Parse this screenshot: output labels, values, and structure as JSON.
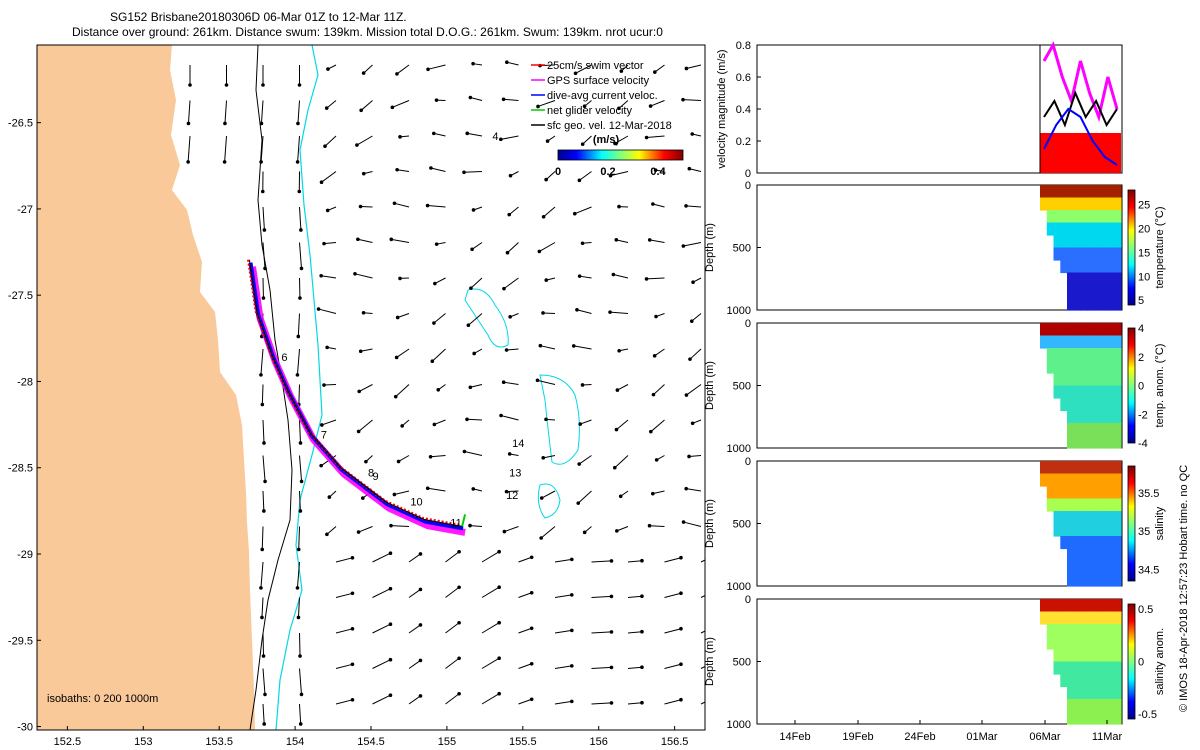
{
  "title_line1": "SG152 Brisbane20180306D 06-Mar 01Z to 12-Mar 11Z.",
  "title_line2": "Distance over ground: 261km. Distance swum: 139km. Mission total D.O.G.: 261km. Swum: 139km. nrot ucur:0",
  "credit": "© IMOS 18-Apr-2018 12:57:23 Hobart time. no QC",
  "colors": {
    "land": "#f9c99a",
    "isobath_200": "#000000",
    "isobath_1000": "#00d8e8",
    "swim_vector": "#ff0000",
    "gps_velocity": "#ff00ff",
    "current_veloc": "#0000ff",
    "net_velocity": "#00cc00",
    "geo_velocity": "#000000"
  },
  "chart_data": [
    {
      "type": "map",
      "xlim": [
        152.3,
        156.7
      ],
      "ylim": [
        -30.02,
        -26.05
      ],
      "x_ticks": [
        "152.5",
        "153",
        "153.5",
        "154",
        "154.5",
        "155",
        "155.5",
        "156",
        "156.5"
      ],
      "x_tick_values": [
        152.5,
        153,
        153.5,
        154,
        154.5,
        155,
        155.5,
        156,
        156.5
      ],
      "y_ticks": [
        "-26.5",
        "-27",
        "-27.5",
        "-28",
        "-28.5",
        "-29",
        "-29.5",
        "-30"
      ],
      "y_tick_values": [
        -26.5,
        -27,
        -27.5,
        -28,
        -28.5,
        -29,
        -29.5,
        -30
      ],
      "legend": [
        {
          "label": "25cm/s swim vector",
          "color": "#ff0000"
        },
        {
          "label": "GPS surface velocity",
          "color": "#ff00ff"
        },
        {
          "label": "dive-avg current veloc.",
          "color": "#0000ff"
        },
        {
          "label": "net glider velocity",
          "color": "#00cc00"
        },
        {
          "label": "sfc geo. vel. 12-Mar-2018",
          "color": "#000000"
        }
      ],
      "colorbar": {
        "label": "(m/s)",
        "ticks": [
          "0",
          "0.2",
          "0.4"
        ],
        "range": [
          0,
          0.5
        ]
      },
      "isobath_note": "isobaths: 0   200  1000m",
      "track": [
        [
          153.7,
          -27.3
        ],
        [
          153.75,
          -27.6
        ],
        [
          153.85,
          -27.85
        ],
        [
          153.95,
          -28.05
        ],
        [
          154.1,
          -28.3
        ],
        [
          154.3,
          -28.5
        ],
        [
          154.6,
          -28.7
        ],
        [
          154.85,
          -28.8
        ],
        [
          155.1,
          -28.84
        ]
      ],
      "track_labels": [
        {
          "text": "6",
          "lon": 153.93,
          "lat": -27.88
        },
        {
          "text": "7",
          "lon": 154.19,
          "lat": -28.33
        },
        {
          "text": "8",
          "lon": 154.5,
          "lat": -28.55
        },
        {
          "text": "9",
          "lon": 154.53,
          "lat": -28.57
        },
        {
          "text": "10",
          "lon": 154.8,
          "lat": -28.72
        },
        {
          "text": "11",
          "lon": 155.06,
          "lat": -28.84
        },
        {
          "text": "12",
          "lon": 155.43,
          "lat": -28.68
        },
        {
          "text": "13",
          "lon": 155.45,
          "lat": -28.55
        },
        {
          "text": "14",
          "lon": 155.47,
          "lat": -28.38
        },
        {
          "text": "4",
          "lon": 155.32,
          "lat": -26.6
        }
      ]
    },
    {
      "type": "line",
      "ylabel": "velocity magnitude (m/s)",
      "ylim": [
        0,
        0.8
      ],
      "y_ticks": [
        "0",
        "0.2",
        "0.4",
        "0.6",
        "0.8"
      ],
      "y_tick_values": [
        0,
        0.2,
        0.4,
        0.6,
        0.8
      ],
      "x_tick_labels": [
        "14Feb",
        "19Feb",
        "24Feb",
        "01Mar",
        "06Mar",
        "11Mar"
      ],
      "series": [
        {
          "color": "#ff0000",
          "values": [
            0.25,
            0.25,
            0.25,
            0.25
          ]
        },
        {
          "color": "#ff00ff",
          "values": [
            0.7,
            0.8,
            0.6,
            0.45,
            0.7,
            0.5,
            0.35,
            0.6,
            0.4
          ]
        },
        {
          "color": "#000000",
          "values": [
            0.35,
            0.45,
            0.3,
            0.5,
            0.35,
            0.45,
            0.3,
            0.4
          ]
        },
        {
          "color": "#0000ff",
          "values": [
            0.15,
            0.3,
            0.4,
            0.35,
            0.2,
            0.1,
            0.05
          ]
        }
      ]
    },
    {
      "type": "heatmap",
      "ylabel": "Depth (m)",
      "cbar_label": "temperature (°C)",
      "ylim": [
        1000,
        0
      ],
      "y_ticks": [
        "0",
        "500",
        "1000"
      ],
      "cbar_ticks": [
        "5",
        "10",
        "15",
        "20",
        "25"
      ],
      "cbar_range": [
        4,
        28
      ]
    },
    {
      "type": "heatmap",
      "ylabel": "Depth (m)",
      "cbar_label": "temp. anom. (°C)",
      "ylim": [
        1000,
        0
      ],
      "y_ticks": [
        "0",
        "500",
        "1000"
      ],
      "cbar_ticks": [
        "-4",
        "-2",
        "0",
        "2",
        "4"
      ],
      "cbar_range": [
        -4,
        4
      ]
    },
    {
      "type": "heatmap",
      "ylabel": "Depth (m)",
      "cbar_label": "salinity",
      "ylim": [
        1000,
        0
      ],
      "y_ticks": [
        "0",
        "500",
        "1000"
      ],
      "cbar_ticks": [
        "34.5",
        "35",
        "35.5"
      ],
      "cbar_range": [
        34.35,
        35.85
      ]
    },
    {
      "type": "heatmap",
      "ylabel": "Depth (m)",
      "cbar_label": "salinity anom.",
      "ylim": [
        1000,
        0
      ],
      "y_ticks": [
        "0",
        "500",
        "1000"
      ],
      "cbar_ticks": [
        "-0.5",
        "0",
        "0.5"
      ],
      "cbar_range": [
        -0.55,
        0.55
      ]
    }
  ]
}
